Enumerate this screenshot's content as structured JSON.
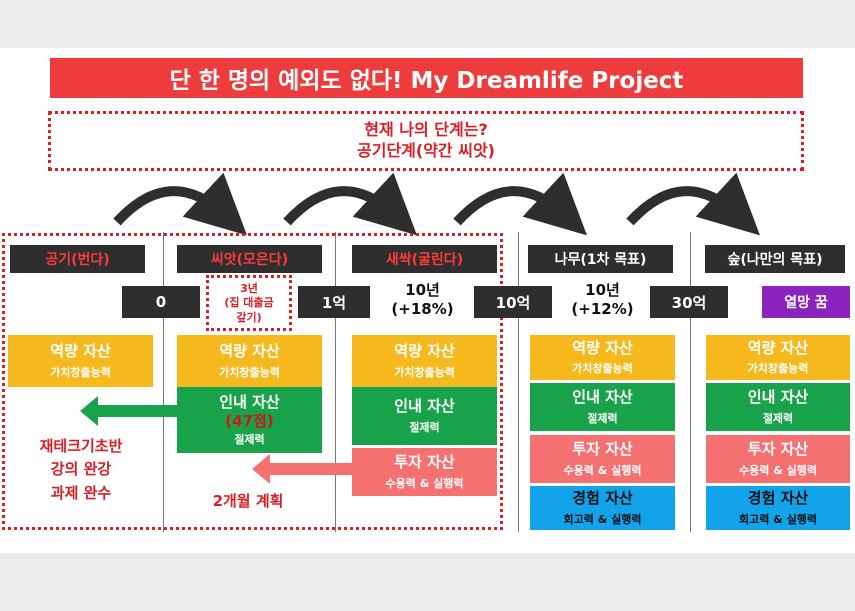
{
  "title": "단 한 명의 예외도 없다! My Dreamlife Project",
  "status": {
    "line1": "현재 나의 단계는?",
    "line2": "공기단계(약간 씨앗)"
  },
  "stages": [
    {
      "label": "공기(번다)",
      "highlight": true
    },
    {
      "label": "씨앗(모은다)",
      "highlight": true
    },
    {
      "label": "새싹(굴린다)",
      "highlight": true
    },
    {
      "label": "나무(1차 목표)",
      "highlight": false
    },
    {
      "label": "숲(나만의 목표)",
      "highlight": false
    }
  ],
  "milestones": {
    "zero": "0",
    "loan": {
      "line1": "3년",
      "line2": "(집 대출금",
      "line3": "갚기)"
    },
    "one_eok": "1억",
    "ten_years_a": {
      "line1": "10년",
      "line2": "(+18%)"
    },
    "ten_eok": "10억",
    "ten_years_b": {
      "line1": "10년",
      "line2": "(+12%)"
    },
    "thirty_eok": "30억",
    "dream": "열망 꿈"
  },
  "assets": {
    "capability": {
      "title": "역량 자산",
      "sub": "가치창출능력"
    },
    "patience": {
      "title": "인내 자산",
      "sub": "절제력"
    },
    "patience_score": "(47점)",
    "investment": {
      "title": "투자 자산",
      "sub": "수용력 & 실행력"
    },
    "experience": {
      "title": "경험 자산",
      "sub": "회고력 & 실행력"
    }
  },
  "notes": {
    "study": {
      "line1": "재테크기초반",
      "line2": "강의 완강",
      "line3": "과제 완수"
    },
    "plan": "2개월 계획"
  },
  "colors": {
    "title_bg": "#ee3b3b",
    "accent_red": "#d81f26",
    "stage_bg": "#2e2e2e",
    "capability": "#f5b91e",
    "patience": "#18a34a",
    "investment": "#f57070",
    "experience": "#12a3ea",
    "dream": "#8b24bf"
  }
}
